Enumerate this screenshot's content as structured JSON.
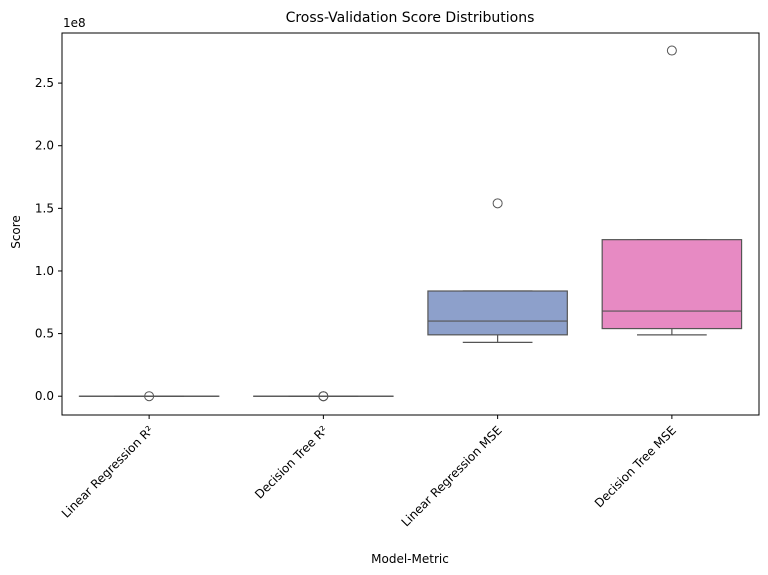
{
  "chart_data": {
    "type": "box",
    "title": "Cross-Validation Score Distributions",
    "xlabel": "Model-Metric",
    "ylabel": "Score",
    "offset_label": "1e8",
    "ylim": [
      -15000000,
      290000000
    ],
    "yticks": [
      0,
      50000000,
      100000000,
      150000000,
      200000000,
      250000000
    ],
    "ytick_labels": [
      "0.0",
      "0.5",
      "1.0",
      "1.5",
      "2.0",
      "2.5"
    ],
    "categories": [
      "Linear Regression R²",
      "Decision Tree R²",
      "Linear Regression MSE",
      "Decision Tree MSE"
    ],
    "boxes": [
      {
        "category": "Linear Regression R²",
        "color": "#66c2a5",
        "whislo": 0,
        "q1": 0,
        "med": 0,
        "q3": 0,
        "whishi": 0,
        "fliers": [
          0
        ]
      },
      {
        "category": "Decision Tree R²",
        "color": "#fc8d62",
        "whislo": 0,
        "q1": 0,
        "med": 0,
        "q3": 0,
        "whishi": 0,
        "fliers": [
          0,
          0
        ]
      },
      {
        "category": "Linear Regression MSE",
        "color": "#8da0cb",
        "whislo": 43000000,
        "q1": 49000000,
        "med": 60000000,
        "q3": 84000000,
        "whishi": 84000000,
        "fliers": [
          154000000
        ]
      },
      {
        "category": "Decision Tree MSE",
        "color": "#e78ac3",
        "whislo": 49000000,
        "q1": 54000000,
        "med": 68000000,
        "q3": 125000000,
        "whishi": 125000000,
        "fliers": [
          276000000
        ]
      }
    ]
  }
}
